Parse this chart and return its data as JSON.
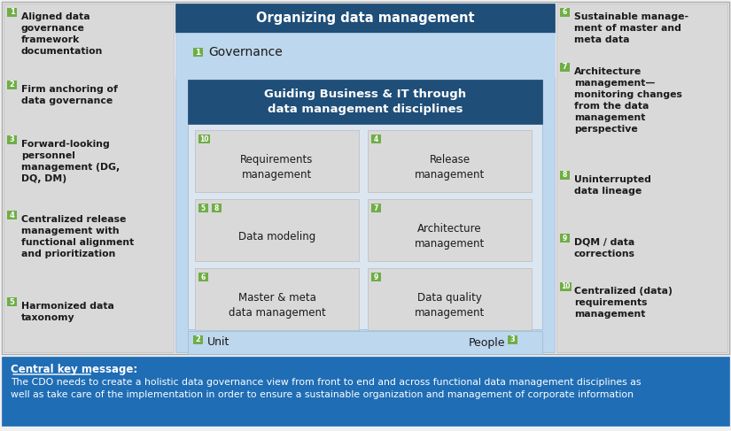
{
  "fig_width": 8.25,
  "fig_height": 4.87,
  "bg_color": "#f0f0f0",
  "dark_blue": "#1f4e79",
  "mid_blue": "#2e75b6",
  "light_blue": "#bdd7ee",
  "lighter_blue": "#dce6f1",
  "green": "#70ad47",
  "white": "#ffffff",
  "gray_bg": "#d9d9d9",
  "dark_text": "#1a1a1a",
  "footer_blue": "#1f6db5",
  "left_items": [
    {
      "num": "1",
      "text": "Aligned data\ngovernance\nframework\ndocumentation"
    },
    {
      "num": "2",
      "text": "Firm anchoring of\ndata governance"
    },
    {
      "num": "3",
      "text": "Forward-looking\npersonnel\nmanagement (DG,\nDQ, DM)"
    },
    {
      "num": "4",
      "text": "Centralized release\nmanagement with\nfunctional alignment\nand prioritization"
    },
    {
      "num": "5",
      "text": "Harmonized data\ntaxonomy"
    }
  ],
  "right_items": [
    {
      "num": "6",
      "text": "Sustainable manage-\nment of master and\nmeta data"
    },
    {
      "num": "7",
      "text": "Architecture\nmanagement—\nmonitoring changes\nfrom the data\nmanagement\nperspective"
    },
    {
      "num": "8",
      "text": "Uninterrupted\ndata lineage"
    },
    {
      "num": "9",
      "text": "DQM / data\ncorrections"
    },
    {
      "num": "10",
      "text": "Centralized (data)\nrequirements\nmanagement"
    }
  ],
  "top_banner": "Organizing data management",
  "governance_label": "Governance",
  "governance_num": "1",
  "inner_banner": "Guiding Business & IT through\ndata management disciplines",
  "boxes": [
    {
      "num": "10",
      "extra_num": null,
      "text": "Requirements\nmanagement",
      "col": 0,
      "row": 0
    },
    {
      "num": "4",
      "extra_num": null,
      "text": "Release\nmanagement",
      "col": 1,
      "row": 0
    },
    {
      "num": "5",
      "extra_num": "8",
      "text": "Data modeling",
      "col": 0,
      "row": 1
    },
    {
      "num": "7",
      "extra_num": null,
      "text": "Architecture\nmanagement",
      "col": 1,
      "row": 1
    },
    {
      "num": "6",
      "extra_num": null,
      "text": "Master & meta\ndata management",
      "col": 0,
      "row": 2
    },
    {
      "num": "9",
      "extra_num": null,
      "text": "Data quality\nmanagement",
      "col": 1,
      "row": 2
    }
  ],
  "bottom_left_num": "2",
  "bottom_left_label": "Unit",
  "bottom_right_num": "3",
  "bottom_right_label": "People",
  "footer_text_bold": "Central key message:",
  "footer_text": "The CDO needs to create a holistic data governance view from front to end and across functional data management disciplines as\nwell as take care of the implementation in order to ensure a sustainable organization and management of corporate information"
}
